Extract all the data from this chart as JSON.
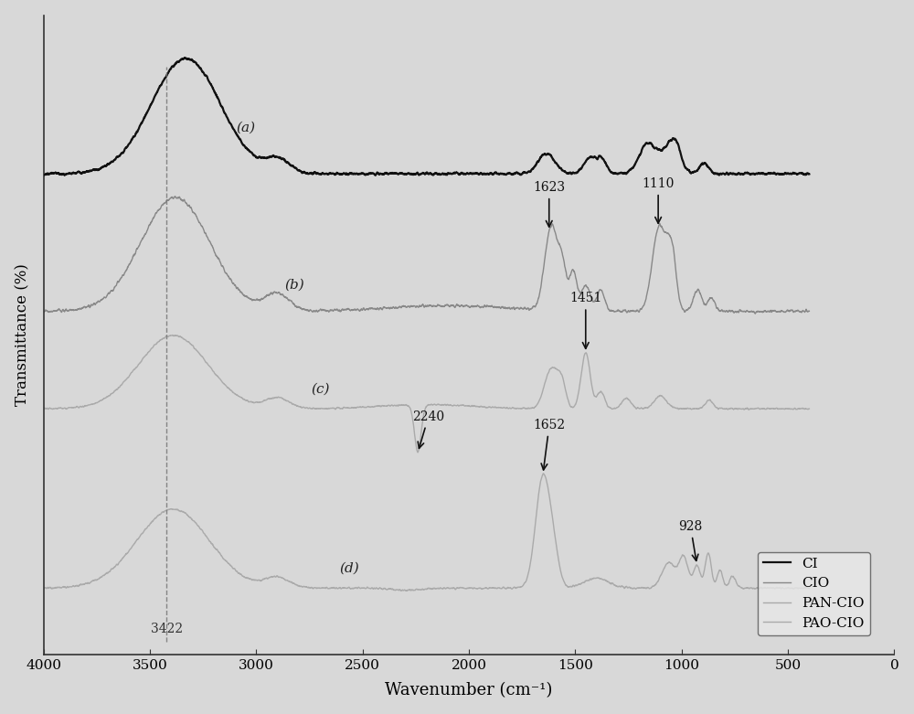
{
  "xlabel": "Wavenumber (cm⁻¹)",
  "ylabel": "Transmittance (%)",
  "background_color": "#d8d8d8",
  "xlim": [
    4000,
    0
  ],
  "colors": {
    "CI": "#111111",
    "CIO": "#888888",
    "PAN-CIO": "#aaaaaa",
    "PAO-CIO": "#aaaaaa"
  },
  "linewidths": {
    "CI": 1.6,
    "CIO": 1.0,
    "PAN-CIO": 1.0,
    "PAO-CIO": 1.0
  },
  "offsets": {
    "CI": 0.78,
    "CIO": 0.52,
    "PAN-CIO": 0.26,
    "PAO-CIO": 0.0
  },
  "scale": 0.22,
  "xticks": [
    4000,
    3500,
    3000,
    2500,
    2000,
    1500,
    1000,
    500,
    0
  ]
}
